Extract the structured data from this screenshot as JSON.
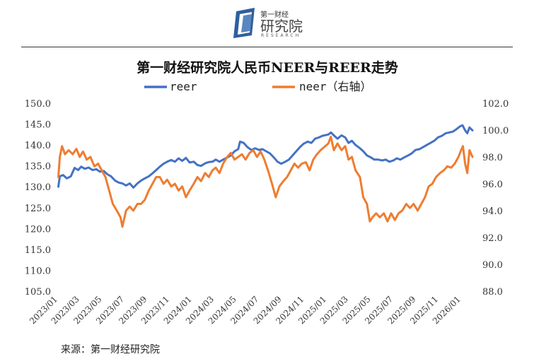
{
  "logo": {
    "brand_small": "第一财经",
    "brand_large": "研究院",
    "brand_en": "RESEARCH"
  },
  "source": "来源：第一财经研究院",
  "chart_data": {
    "type": "line",
    "title": "第一财经研究院人民币NEER与REER走势",
    "legend_position": "top",
    "grid": false,
    "x_tick_labels": [
      "2023/01",
      "2023/03",
      "2023/05",
      "2023/07",
      "2023/09",
      "2023/11",
      "2024/01",
      "2024/03",
      "2024/05",
      "2024/07",
      "2024/09",
      "2024/11",
      "2025/01",
      "2025/03",
      "2025/05",
      "2025/07",
      "2025/09",
      "2025/11",
      "2026/01"
    ],
    "x_start": "2023/01",
    "x_end": "2026/02",
    "y_left": {
      "min": 105.0,
      "max": 150.0,
      "ticks": [
        "105.0",
        "110.0",
        "115.0",
        "120.0",
        "125.0",
        "130.0",
        "135.0",
        "140.0",
        "145.0",
        "150.0"
      ]
    },
    "y_right": {
      "min": 88.0,
      "max": 102.0,
      "ticks": [
        "88.0",
        "90.0",
        "92.0",
        "94.0",
        "96.0",
        "98.0",
        "100.0",
        "102.0"
      ]
    },
    "series": [
      {
        "name": "reer",
        "axis": "left",
        "color": "#4472c4",
        "points": [
          [
            "2023/01/02",
            130.0
          ],
          [
            "2023/01/06",
            132.5
          ],
          [
            "2023/01/15",
            132.8
          ],
          [
            "2023/01/25",
            132.0
          ],
          [
            "2023/02/05",
            132.5
          ],
          [
            "2023/02/15",
            134.5
          ],
          [
            "2023/02/25",
            134.0
          ],
          [
            "2023/03/05",
            134.8
          ],
          [
            "2023/03/15",
            134.3
          ],
          [
            "2023/03/25",
            134.6
          ],
          [
            "2023/04/05",
            134.0
          ],
          [
            "2023/04/15",
            134.2
          ],
          [
            "2023/04/25",
            133.6
          ],
          [
            "2023/05/05",
            133.8
          ],
          [
            "2023/05/15",
            133.0
          ],
          [
            "2023/05/25",
            132.5
          ],
          [
            "2023/06/05",
            131.5
          ],
          [
            "2023/06/15",
            131.0
          ],
          [
            "2023/06/25",
            130.8
          ],
          [
            "2023/07/05",
            130.3
          ],
          [
            "2023/07/15",
            130.8
          ],
          [
            "2023/07/25",
            129.8
          ],
          [
            "2023/08/05",
            130.8
          ],
          [
            "2023/08/15",
            131.5
          ],
          [
            "2023/08/25",
            132.0
          ],
          [
            "2023/09/05",
            132.5
          ],
          [
            "2023/09/15",
            133.2
          ],
          [
            "2023/09/25",
            134.0
          ],
          [
            "2023/10/05",
            134.8
          ],
          [
            "2023/10/15",
            135.5
          ],
          [
            "2023/10/25",
            136.0
          ],
          [
            "2023/11/05",
            136.4
          ],
          [
            "2023/11/15",
            136.0
          ],
          [
            "2023/11/25",
            136.8
          ],
          [
            "2023/12/05",
            136.2
          ],
          [
            "2023/12/15",
            136.9
          ],
          [
            "2023/12/25",
            135.8
          ],
          [
            "2024/01/05",
            136.0
          ],
          [
            "2024/01/15",
            135.2
          ],
          [
            "2024/01/25",
            135.0
          ],
          [
            "2024/02/05",
            135.6
          ],
          [
            "2024/02/15",
            135.9
          ],
          [
            "2024/02/25",
            136.0
          ],
          [
            "2024/03/05",
            136.5
          ],
          [
            "2024/03/15",
            136.0
          ],
          [
            "2024/03/25",
            136.5
          ],
          [
            "2024/04/05",
            137.0
          ],
          [
            "2024/04/15",
            137.5
          ],
          [
            "2024/04/25",
            138.5
          ],
          [
            "2024/05/05",
            139.0
          ],
          [
            "2024/05/10",
            140.8
          ],
          [
            "2024/05/20",
            140.5
          ],
          [
            "2024/05/30",
            139.5
          ],
          [
            "2024/06/10",
            138.8
          ],
          [
            "2024/06/20",
            139.2
          ],
          [
            "2024/07/01",
            138.8
          ],
          [
            "2024/07/10",
            139.0
          ],
          [
            "2024/07/20",
            138.5
          ],
          [
            "2024/07/30",
            138.0
          ],
          [
            "2024/08/10",
            137.0
          ],
          [
            "2024/08/20",
            136.0
          ],
          [
            "2024/08/30",
            135.5
          ],
          [
            "2024/09/10",
            136.0
          ],
          [
            "2024/09/20",
            136.5
          ],
          [
            "2024/09/30",
            137.5
          ],
          [
            "2024/10/10",
            138.5
          ],
          [
            "2024/10/20",
            139.5
          ],
          [
            "2024/10/30",
            140.3
          ],
          [
            "2024/11/10",
            140.8
          ],
          [
            "2024/11/20",
            140.5
          ],
          [
            "2024/11/30",
            141.5
          ],
          [
            "2024/12/10",
            141.8
          ],
          [
            "2024/12/20",
            142.2
          ],
          [
            "2025/01/05",
            142.5
          ],
          [
            "2025/01/12",
            143.0
          ],
          [
            "2025/01/20",
            142.3
          ],
          [
            "2025/01/30",
            141.5
          ],
          [
            "2025/02/10",
            142.3
          ],
          [
            "2025/02/20",
            141.8
          ],
          [
            "2025/03/01",
            140.5
          ],
          [
            "2025/03/10",
            141.0
          ],
          [
            "2025/03/20",
            140.0
          ],
          [
            "2025/04/01",
            139.2
          ],
          [
            "2025/04/10",
            138.5
          ],
          [
            "2025/04/20",
            137.5
          ],
          [
            "2025/05/01",
            137.0
          ],
          [
            "2025/05/10",
            136.5
          ],
          [
            "2025/05/20",
            136.5
          ],
          [
            "2025/06/01",
            136.3
          ],
          [
            "2025/06/10",
            136.5
          ],
          [
            "2025/06/20",
            136.0
          ],
          [
            "2025/07/01",
            136.3
          ],
          [
            "2025/07/10",
            136.8
          ],
          [
            "2025/07/20",
            136.5
          ],
          [
            "2025/07/30",
            137.0
          ],
          [
            "2025/08/10",
            137.5
          ],
          [
            "2025/08/20",
            138.0
          ],
          [
            "2025/08/30",
            138.8
          ],
          [
            "2025/09/10",
            139.0
          ],
          [
            "2025/09/20",
            139.5
          ],
          [
            "2025/09/30",
            140.0
          ],
          [
            "2025/10/10",
            140.5
          ],
          [
            "2025/10/20",
            141.0
          ],
          [
            "2025/10/30",
            141.8
          ],
          [
            "2025/11/10",
            142.2
          ],
          [
            "2025/11/20",
            142.8
          ],
          [
            "2025/11/30",
            143.0
          ],
          [
            "2025/12/10",
            143.2
          ],
          [
            "2025/12/20",
            143.8
          ],
          [
            "2025/12/30",
            144.5
          ],
          [
            "2026/01/05",
            144.7
          ],
          [
            "2026/01/12",
            143.5
          ],
          [
            "2026/01/18",
            142.8
          ],
          [
            "2026/01/24",
            144.2
          ],
          [
            "2026/02/01",
            143.5
          ]
        ]
      },
      {
        "name": "neer（右轴）",
        "axis": "right",
        "color": "#ed7d31",
        "points": [
          [
            "2023/01/02",
            96.5
          ],
          [
            "2023/01/06",
            98.0
          ],
          [
            "2023/01/12",
            98.8
          ],
          [
            "2023/01/20",
            98.2
          ],
          [
            "2023/01/30",
            98.5
          ],
          [
            "2023/02/10",
            98.2
          ],
          [
            "2023/02/20",
            98.6
          ],
          [
            "2023/03/01",
            98.0
          ],
          [
            "2023/03/10",
            98.4
          ],
          [
            "2023/03/20",
            97.8
          ],
          [
            "2023/03/30",
            98.0
          ],
          [
            "2023/04/10",
            97.3
          ],
          [
            "2023/04/20",
            97.5
          ],
          [
            "2023/04/30",
            97.0
          ],
          [
            "2023/05/10",
            96.5
          ],
          [
            "2023/05/20",
            95.5
          ],
          [
            "2023/05/30",
            94.5
          ],
          [
            "2023/06/10",
            94.0
          ],
          [
            "2023/06/20",
            93.5
          ],
          [
            "2023/06/25",
            92.8
          ],
          [
            "2023/07/05",
            94.0
          ],
          [
            "2023/07/15",
            94.3
          ],
          [
            "2023/07/25",
            94.0
          ],
          [
            "2023/08/05",
            94.5
          ],
          [
            "2023/08/15",
            94.5
          ],
          [
            "2023/08/25",
            94.8
          ],
          [
            "2023/09/05",
            95.5
          ],
          [
            "2023/09/15",
            96.0
          ],
          [
            "2023/09/25",
            96.5
          ],
          [
            "2023/10/05",
            96.5
          ],
          [
            "2023/10/15",
            96.0
          ],
          [
            "2023/10/25",
            96.3
          ],
          [
            "2023/11/05",
            95.8
          ],
          [
            "2023/11/15",
            96.0
          ],
          [
            "2023/11/25",
            95.5
          ],
          [
            "2023/12/05",
            95.8
          ],
          [
            "2023/12/15",
            95.0
          ],
          [
            "2023/12/25",
            95.5
          ],
          [
            "2024/01/05",
            96.0
          ],
          [
            "2024/01/15",
            96.5
          ],
          [
            "2024/01/25",
            96.2
          ],
          [
            "2024/02/05",
            96.8
          ],
          [
            "2024/02/15",
            96.5
          ],
          [
            "2024/02/25",
            97.0
          ],
          [
            "2024/03/05",
            97.2
          ],
          [
            "2024/03/15",
            96.8
          ],
          [
            "2024/03/25",
            97.5
          ],
          [
            "2024/04/05",
            98.0
          ],
          [
            "2024/04/15",
            98.3
          ],
          [
            "2024/04/25",
            97.8
          ],
          [
            "2024/05/05",
            98.0
          ],
          [
            "2024/05/15",
            98.2
          ],
          [
            "2024/05/25",
            97.8
          ],
          [
            "2024/06/05",
            98.3
          ],
          [
            "2024/06/15",
            98.5
          ],
          [
            "2024/06/25",
            98.0
          ],
          [
            "2024/07/05",
            98.4
          ],
          [
            "2024/07/15",
            97.8
          ],
          [
            "2024/07/25",
            97.0
          ],
          [
            "2024/08/05",
            96.0
          ],
          [
            "2024/08/15",
            95.0
          ],
          [
            "2024/08/25",
            95.8
          ],
          [
            "2024/09/05",
            96.2
          ],
          [
            "2024/09/15",
            96.5
          ],
          [
            "2024/09/25",
            97.0
          ],
          [
            "2024/10/05",
            97.5
          ],
          [
            "2024/10/15",
            97.2
          ],
          [
            "2024/10/25",
            97.5
          ],
          [
            "2024/11/05",
            97.6
          ],
          [
            "2024/11/15",
            97.0
          ],
          [
            "2024/11/25",
            97.8
          ],
          [
            "2024/12/05",
            98.2
          ],
          [
            "2024/12/15",
            98.5
          ],
          [
            "2025/01/05",
            99.0
          ],
          [
            "2025/01/12",
            99.5
          ],
          [
            "2025/01/20",
            98.5
          ],
          [
            "2025/01/30",
            99.0
          ],
          [
            "2025/02/10",
            98.5
          ],
          [
            "2025/02/20",
            98.8
          ],
          [
            "2025/03/01",
            97.8
          ],
          [
            "2025/03/10",
            98.0
          ],
          [
            "2025/03/20",
            97.0
          ],
          [
            "2025/04/01",
            96.5
          ],
          [
            "2025/04/10",
            95.0
          ],
          [
            "2025/04/20",
            94.5
          ],
          [
            "2025/04/28",
            93.2
          ],
          [
            "2025/05/05",
            93.5
          ],
          [
            "2025/05/15",
            93.8
          ],
          [
            "2025/05/25",
            93.5
          ],
          [
            "2025/06/05",
            93.8
          ],
          [
            "2025/06/15",
            93.2
          ],
          [
            "2025/06/25",
            93.8
          ],
          [
            "2025/07/05",
            93.3
          ],
          [
            "2025/07/15",
            93.8
          ],
          [
            "2025/07/25",
            94.0
          ],
          [
            "2025/08/05",
            94.5
          ],
          [
            "2025/08/15",
            94.2
          ],
          [
            "2025/08/25",
            94.5
          ],
          [
            "2025/09/05",
            94.0
          ],
          [
            "2025/09/15",
            94.5
          ],
          [
            "2025/09/25",
            95.0
          ],
          [
            "2025/10/05",
            95.8
          ],
          [
            "2025/10/15",
            96.0
          ],
          [
            "2025/10/25",
            96.5
          ],
          [
            "2025/11/05",
            96.8
          ],
          [
            "2025/11/15",
            97.0
          ],
          [
            "2025/11/25",
            97.3
          ],
          [
            "2025/12/05",
            97.2
          ],
          [
            "2025/12/15",
            97.5
          ],
          [
            "2025/12/25",
            98.0
          ],
          [
            "2026/01/01",
            98.5
          ],
          [
            "2026/01/06",
            98.8
          ],
          [
            "2026/01/12",
            97.5
          ],
          [
            "2026/01/18",
            96.8
          ],
          [
            "2026/01/24",
            98.5
          ],
          [
            "2026/02/01",
            98.0
          ]
        ]
      }
    ]
  }
}
